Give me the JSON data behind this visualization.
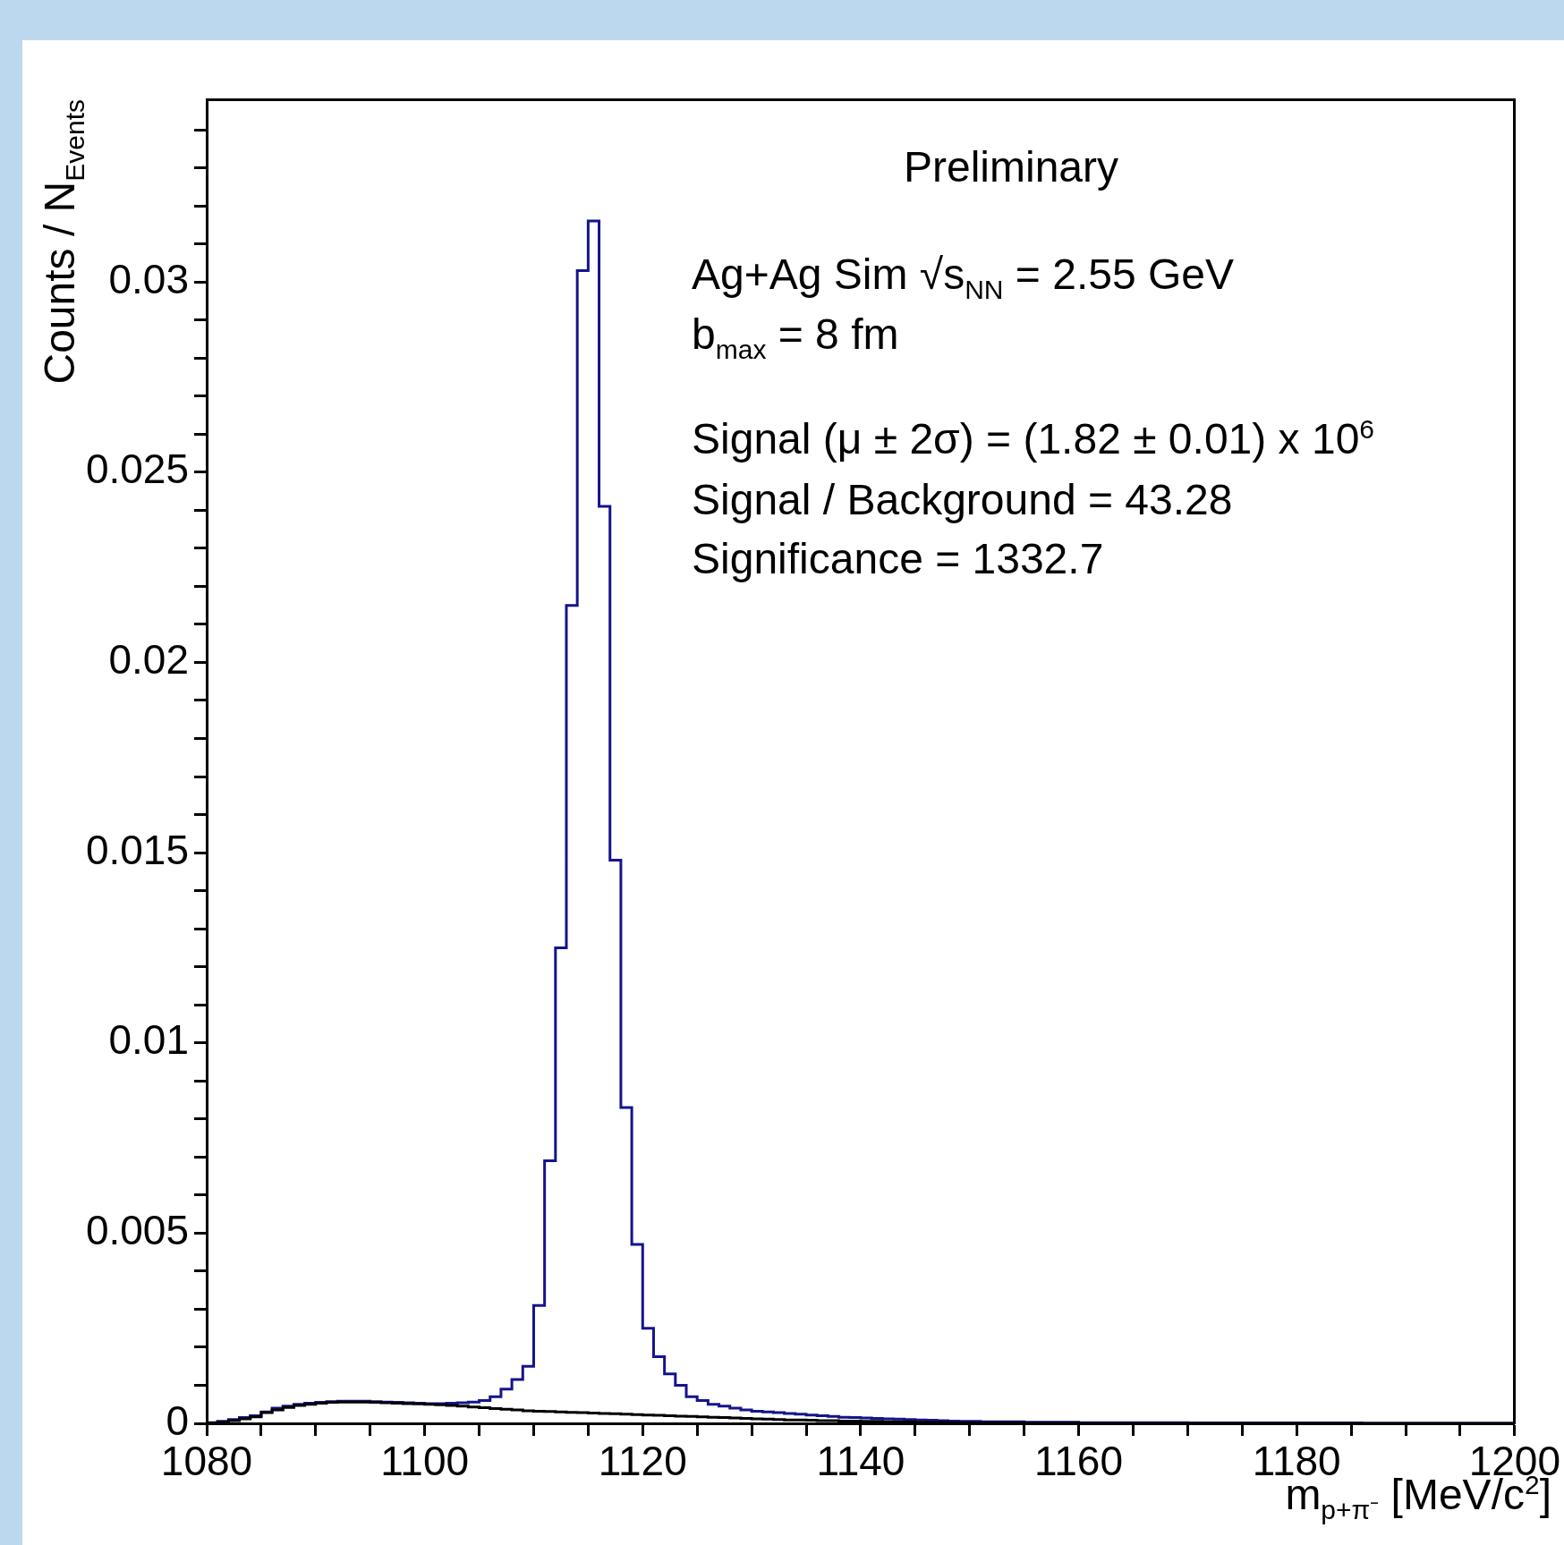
{
  "chart_data": {
    "type": "histogram",
    "xlabel": "m$_{p+π⁻}$ [MeV/c$^{2}$]",
    "ylabel": "Counts / N$_{Events}$",
    "annotations": [
      "Preliminary",
      "Ag+Ag Sim √s$_{NN}$ = 2.55 GeV",
      "b$_{max}$ = 8 fm",
      "Signal (μ ± 2σ) = (1.82 ± 0.01) x 10$^{6}$",
      "Signal / Background = 43.28",
      "Significance = 1332.7"
    ],
    "bins": [
      1080,
      1081,
      1082,
      1083,
      1084,
      1085,
      1086,
      1087,
      1088,
      1089,
      1090,
      1091,
      1092,
      1093,
      1094,
      1095,
      1096,
      1097,
      1098,
      1099,
      1100,
      1101,
      1102,
      1103,
      1104,
      1105,
      1106,
      1107,
      1108,
      1109,
      1110,
      1111,
      1112,
      1113,
      1114,
      1115,
      1116,
      1117,
      1118,
      1119,
      1120,
      1121,
      1122,
      1123,
      1124,
      1125,
      1126,
      1127,
      1128,
      1129,
      1130,
      1131,
      1132,
      1133,
      1134,
      1135,
      1136,
      1137,
      1138,
      1139,
      1140,
      1141,
      1142,
      1143,
      1144,
      1145,
      1146,
      1147,
      1148,
      1149,
      1150,
      1151,
      1152,
      1153,
      1154,
      1155,
      1156,
      1157,
      1158,
      1159,
      1160,
      1161,
      1162,
      1163,
      1164,
      1165,
      1166,
      1167,
      1168,
      1169,
      1170,
      1171,
      1172,
      1173,
      1174,
      1175,
      1176,
      1177,
      1178,
      1179,
      1180,
      1181,
      1182,
      1183,
      1184,
      1185,
      1186,
      1187,
      1188,
      1189,
      1190,
      1191,
      1192,
      1193,
      1194,
      1195,
      1196,
      1197,
      1198,
      1199,
      1200
    ],
    "series": [
      {
        "color": "#14148c",
        "values": [
          2e-05,
          5e-05,
          0.0001,
          0.00015,
          0.0002,
          0.0003,
          0.0004,
          0.00045,
          0.0005,
          0.00053,
          0.00055,
          0.00057,
          0.00058,
          0.00058,
          0.00058,
          0.00057,
          0.00056,
          0.00055,
          0.00054,
          0.00053,
          0.00052,
          0.00052,
          0.00053,
          0.00054,
          0.00056,
          0.0006,
          0.0007,
          0.0009,
          0.00115,
          0.0015,
          0.0031,
          0.0069,
          0.0125,
          0.0215,
          0.0303,
          0.0316,
          0.0241,
          0.0148,
          0.0083,
          0.0047,
          0.0025,
          0.00175,
          0.0013,
          0.001,
          0.0007,
          0.0006,
          0.0005,
          0.00045,
          0.0004,
          0.00035,
          0.00032,
          0.0003,
          0.00028,
          0.00026,
          0.00024,
          0.00022,
          0.0002,
          0.00018,
          0.00016,
          0.00015,
          0.00014,
          0.00013,
          0.00012,
          0.00011,
          0.0001,
          9e-05,
          8e-05,
          7e-05,
          6e-05,
          5e-05,
          5e-05,
          4e-05,
          4e-05,
          4e-05,
          4e-05,
          3e-05,
          3e-05,
          3e-05,
          3e-05,
          3e-05,
          2e-05,
          2e-05,
          2e-05,
          2e-05,
          2e-05,
          2e-05,
          2e-05,
          2e-05,
          2e-05,
          2e-05,
          1e-05,
          1e-05,
          1e-05,
          1e-05,
          1e-05,
          1e-05,
          1e-05,
          1e-05,
          1e-05,
          1e-05,
          1e-05,
          1e-05,
          1e-05,
          1e-05,
          1e-05,
          1e-05,
          0,
          0,
          0,
          0,
          0,
          0,
          0,
          0,
          0,
          0,
          0,
          0,
          0,
          0
        ]
      },
      {
        "color": "#000000",
        "values": [
          1e-05,
          3e-05,
          7e-05,
          0.00012,
          0.00017,
          0.00028,
          0.00035,
          0.00042,
          0.00047,
          0.0005,
          0.00053,
          0.00055,
          0.00056,
          0.00056,
          0.00056,
          0.00055,
          0.00054,
          0.00053,
          0.00052,
          0.00051,
          0.0005,
          0.00049,
          0.00047,
          0.00045,
          0.00043,
          0.00041,
          0.00039,
          0.00037,
          0.00035,
          0.00033,
          0.00032,
          0.00031,
          0.0003,
          0.00029,
          0.00028,
          0.00027,
          0.00026,
          0.00025,
          0.00024,
          0.00023,
          0.00022,
          0.00021,
          0.0002,
          0.00019,
          0.00018,
          0.00017,
          0.00016,
          0.00015,
          0.00014,
          0.00013,
          0.00012,
          0.00011,
          0.0001,
          9e-05,
          9e-05,
          8e-05,
          7e-05,
          7e-05,
          6e-05,
          6e-05,
          5e-05,
          5e-05,
          4e-05,
          4e-05,
          4e-05,
          3e-05,
          3e-05,
          3e-05,
          2e-05,
          2e-05,
          2e-05,
          2e-05,
          2e-05,
          2e-05,
          2e-05,
          1e-05,
          1e-05,
          1e-05,
          1e-05,
          1e-05,
          0,
          0,
          0,
          0,
          0,
          0,
          0,
          0,
          0,
          0,
          0,
          0,
          0,
          0,
          0,
          0,
          0,
          0,
          0,
          0,
          0,
          0,
          0,
          0,
          0,
          0,
          0,
          0,
          0,
          0,
          0,
          0,
          0,
          0,
          0,
          0,
          0,
          0,
          0,
          0
        ]
      }
    ],
    "xlim": [
      1080,
      1200
    ],
    "xticks": [
      1080,
      {
        "value": 1085,
        "label": null
      },
      {
        "value": 1090,
        "label": null
      },
      {
        "value": 1095,
        "label": null
      },
      1100,
      {
        "value": 1105,
        "label": null
      },
      {
        "value": 1110,
        "label": null
      },
      {
        "value": 1115,
        "label": null
      },
      1120,
      {
        "value": 1125,
        "label": null
      },
      {
        "value": 1130,
        "label": null
      },
      {
        "value": 1135,
        "label": null
      },
      1140,
      {
        "value": 1145,
        "label": null
      },
      {
        "value": 1150,
        "label": null
      },
      {
        "value": 1155,
        "label": null
      },
      1160,
      {
        "value": 1165,
        "label": null
      },
      {
        "value": 1170,
        "label": null
      },
      {
        "value": 1175,
        "label": null
      },
      1180,
      {
        "value": 1185,
        "label": null
      },
      {
        "value": 1190,
        "label": null
      },
      {
        "value": 1195,
        "label": null
      },
      1200
    ],
    "ylim": [
      0,
      0.0348
    ],
    "yticks": [
      0,
      {
        "value": 0.001,
        "label": null
      },
      {
        "value": 0.002,
        "label": null
      },
      {
        "value": 0.003,
        "label": null
      },
      {
        "value": 0.004,
        "label": null
      },
      0.005,
      {
        "value": 0.006,
        "label": null
      },
      {
        "value": 0.007,
        "label": null
      },
      {
        "value": 0.008,
        "label": null
      },
      {
        "value": 0.009,
        "label": null
      },
      0.01,
      {
        "value": 0.011,
        "label": null
      },
      {
        "value": 0.012,
        "label": null
      },
      {
        "value": 0.013,
        "label": null
      },
      {
        "value": 0.014,
        "label": null
      },
      0.015,
      {
        "value": 0.016,
        "label": null
      },
      {
        "value": 0.017,
        "label": null
      },
      {
        "value": 0.018,
        "label": null
      },
      {
        "value": 0.019,
        "label": null
      },
      0.02,
      {
        "value": 0.021,
        "label": null
      },
      {
        "value": 0.022,
        "label": null
      },
      {
        "value": 0.023,
        "label": null
      },
      {
        "value": 0.024,
        "label": null
      },
      0.025,
      {
        "value": 0.026,
        "label": null
      },
      {
        "value": 0.027,
        "label": null
      },
      {
        "value": 0.028,
        "label": null
      },
      {
        "value": 0.029,
        "label": null
      },
      0.03,
      {
        "value": 0.031,
        "label": null
      },
      {
        "value": 0.032,
        "label": null
      },
      {
        "value": 0.033,
        "label": null
      },
      {
        "value": 0.034,
        "label": null
      }
    ]
  }
}
